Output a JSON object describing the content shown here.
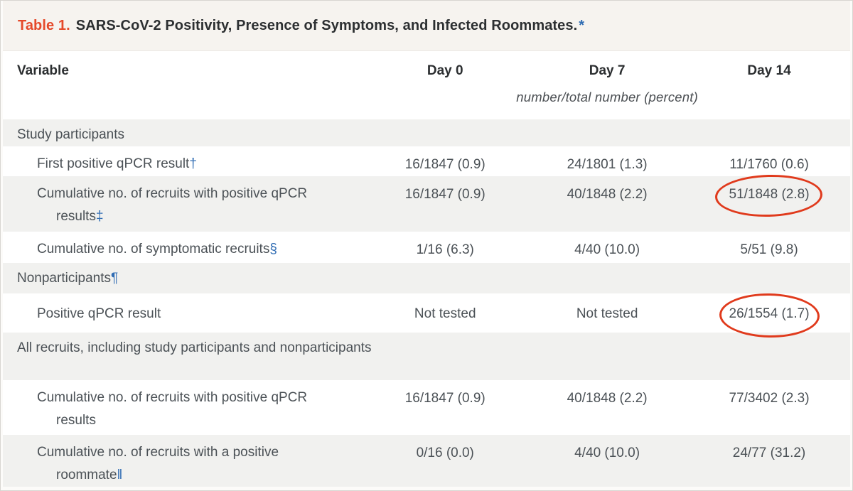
{
  "title": {
    "prefix": "Table 1.",
    "text": "SARS-CoV-2 Positivity, Presence of Symptoms, and Infected Roommates.",
    "marker": "*"
  },
  "header": {
    "columns": [
      "Variable",
      "Day 0",
      "Day 7",
      "Day 14"
    ],
    "units_note": "number/total number (percent)"
  },
  "rows": [
    {
      "kind": "section",
      "label": "Study participants"
    },
    {
      "kind": "data",
      "label": "First positive qPCR result",
      "marker": "†",
      "day0": "16/1847 (0.9)",
      "day7": "24/1801 (1.3)",
      "day14": "11/1760 (0.6)"
    },
    {
      "kind": "data",
      "label": "Cumulative no. of recruits with positive qPCR results",
      "marker": "‡",
      "day0": "16/1847 (0.9)",
      "day7": "40/1848 (2.2)",
      "day14": "51/1848 (2.8)",
      "day14_circled": true
    },
    {
      "kind": "data",
      "label": "Cumulative no. of symptomatic recruits",
      "marker": "§",
      "day0": "1/16 (6.3)",
      "day7": "4/40 (10.0)",
      "day14": "5/51 (9.8)"
    },
    {
      "kind": "section",
      "label": "Nonparticipants",
      "marker": "¶"
    },
    {
      "kind": "data",
      "label": "Positive qPCR result",
      "day0": "Not tested",
      "day7": "Not tested",
      "day14": "26/1554 (1.7)",
      "day14_circled": true
    },
    {
      "kind": "section",
      "label": "All recruits, including study participants and nonparticipants"
    },
    {
      "kind": "data",
      "label": "Cumulative no. of recruits with positive qPCR results",
      "day0": "16/1847 (0.9)",
      "day7": "40/1848 (2.2)",
      "day14": "77/3402 (2.3)"
    },
    {
      "kind": "data",
      "label": "Cumulative no. of recruits with a positive roommate",
      "marker": "‖",
      "day0": "0/16 (0.0)",
      "day7": "4/40 (10.0)",
      "day14": "24/77 (31.2)"
    }
  ],
  "annotations": {
    "circled_values": [
      "51/1848 (2.8)",
      "26/1554 (1.7)"
    ]
  },
  "colors": {
    "title_accent_red": "#e5492a",
    "footnote_marker_blue": "#2f6cb3",
    "highlight_circle_red": "#e03a1c",
    "band_gray": "#f1f1ef",
    "title_bar_bg": "#f6f3ef",
    "body_text": "#4b5156"
  }
}
